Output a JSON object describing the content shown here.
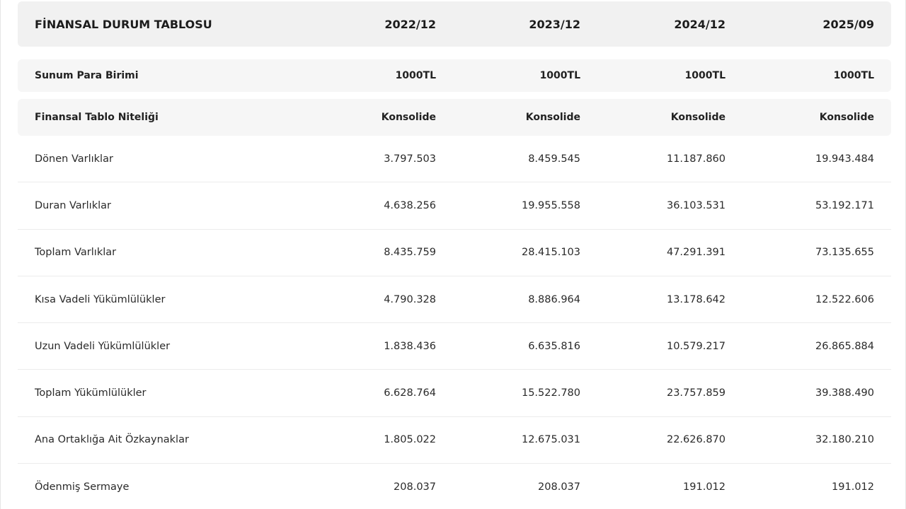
{
  "table": {
    "title": "FİNANSAL DURUM TABLOSU",
    "periods": [
      "2022/12",
      "2023/12",
      "2024/12",
      "2025/09"
    ],
    "meta_rows": [
      {
        "label": "Sunum Para Birimi",
        "values": [
          "1000TL",
          "1000TL",
          "1000TL",
          "1000TL"
        ]
      },
      {
        "label": "Finansal Tablo Niteliği",
        "values": [
          "Konsolide",
          "Konsolide",
          "Konsolide",
          "Konsolide"
        ]
      }
    ],
    "rows": [
      {
        "label": "Dönen Varlıklar",
        "values": [
          "3.797.503",
          "8.459.545",
          "11.187.860",
          "19.943.484"
        ]
      },
      {
        "label": "Duran Varlıklar",
        "values": [
          "4.638.256",
          "19.955.558",
          "36.103.531",
          "53.192.171"
        ]
      },
      {
        "label": "Toplam Varlıklar",
        "values": [
          "8.435.759",
          "28.415.103",
          "47.291.391",
          "73.135.655"
        ]
      },
      {
        "label": "Kısa Vadeli Yükümlülükler",
        "values": [
          "4.790.328",
          "8.886.964",
          "13.178.642",
          "12.522.606"
        ]
      },
      {
        "label": "Uzun Vadeli Yükümlülükler",
        "values": [
          "1.838.436",
          "6.635.816",
          "10.579.217",
          "26.865.884"
        ]
      },
      {
        "label": "Toplam Yükümlülükler",
        "values": [
          "6.628.764",
          "15.522.780",
          "23.757.859",
          "39.388.490"
        ]
      },
      {
        "label": "Ana Ortaklığa Ait Özkaynaklar",
        "values": [
          "1.805.022",
          "12.675.031",
          "22.626.870",
          "32.180.210"
        ]
      },
      {
        "label": "Ödenmiş Sermaye",
        "values": [
          "208.037",
          "208.037",
          "191.012",
          "191.012"
        ]
      }
    ]
  }
}
